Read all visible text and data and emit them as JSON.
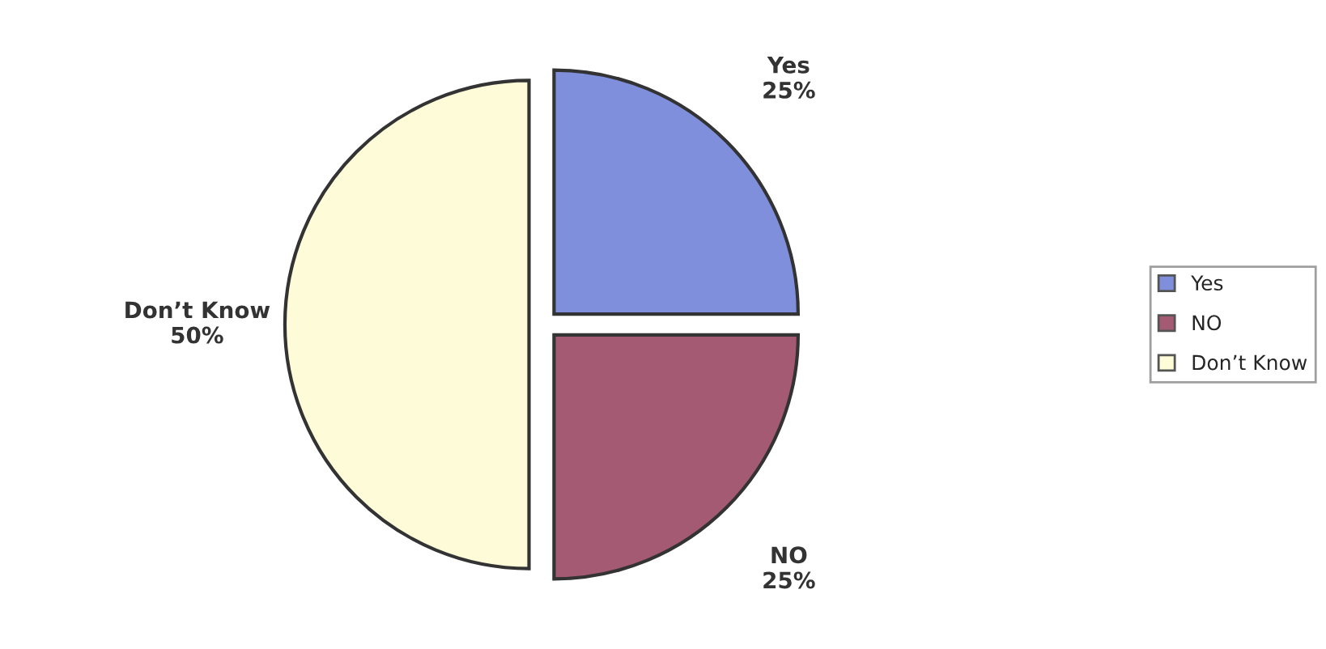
{
  "chart_data": {
    "type": "pie",
    "categories": [
      "Yes",
      "NO",
      "Don’t Know"
    ],
    "values": [
      25,
      25,
      50
    ],
    "value_labels": [
      "25%",
      "25%",
      "50%"
    ],
    "colors": [
      "#7f8fdc",
      "#a35a72",
      "#fdfbd8"
    ],
    "legend": "right"
  }
}
